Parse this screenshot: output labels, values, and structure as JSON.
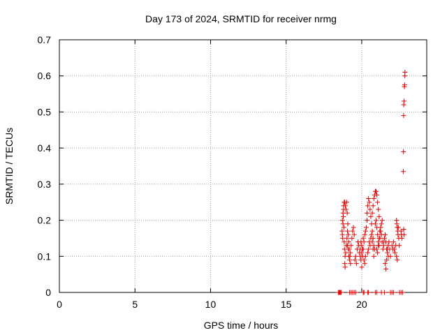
{
  "chart_data": {
    "type": "scatter",
    "title": "Day 173 of 2024, SRMTID for receiver nrmg",
    "xlabel": "GPS time / hours",
    "ylabel": "SRMTID / TECUs",
    "xlim": [
      0,
      24.3
    ],
    "ylim": [
      0,
      0.7
    ],
    "x_ticks": [
      0,
      5,
      10,
      15,
      20
    ],
    "x_tick_labels": [
      "0",
      "5",
      "10",
      "15",
      "20"
    ],
    "y_ticks": [
      0,
      0.1,
      0.2,
      0.3,
      0.4,
      0.5,
      0.6,
      0.7
    ],
    "y_tick_labels": [
      "0",
      "0.1",
      "0.2",
      "0.3",
      "0.4",
      "0.5",
      "0.6",
      "0.7"
    ],
    "grid": true,
    "marker": "+",
    "colors": {
      "series": "#e00000",
      "grid": "#a0a0a0",
      "axis": "#000000"
    },
    "series": [
      {
        "points": [
          [
            18.45,
            0
          ],
          [
            18.5,
            0
          ],
          [
            18.55,
            0
          ],
          [
            18.6,
            0
          ],
          [
            18.65,
            0
          ],
          [
            18.7,
            0.17
          ],
          [
            18.72,
            0.16
          ],
          [
            18.74,
            0.15
          ],
          [
            18.76,
            0.19
          ],
          [
            18.78,
            0.21
          ],
          [
            18.8,
            0.23
          ],
          [
            18.82,
            0.18
          ],
          [
            18.84,
            0.14
          ],
          [
            18.86,
            0.12
          ],
          [
            18.88,
            0.08
          ],
          [
            18.9,
            0.07
          ],
          [
            18.72,
            0.2
          ],
          [
            18.76,
            0.22
          ],
          [
            18.8,
            0.24
          ],
          [
            18.84,
            0.25
          ],
          [
            18.88,
            0.25
          ],
          [
            18.92,
            0.24
          ],
          [
            18.96,
            0.23
          ],
          [
            19.0,
            0.25
          ],
          [
            19.04,
            0.22
          ],
          [
            19.08,
            0.19
          ],
          [
            18.9,
            0.1
          ],
          [
            18.94,
            0.11
          ],
          [
            18.98,
            0.13
          ],
          [
            19.02,
            0.15
          ],
          [
            19.06,
            0.17
          ],
          [
            19.1,
            0.16
          ],
          [
            19.14,
            0.14
          ],
          [
            19.18,
            0.12
          ],
          [
            19.22,
            0.1
          ],
          [
            19.26,
            0.08
          ],
          [
            19.05,
            0.13
          ],
          [
            19.1,
            0.12
          ],
          [
            19.15,
            0.1
          ],
          [
            19.2,
            0.09
          ],
          [
            19.25,
            0.11
          ],
          [
            19.3,
            0.13
          ],
          [
            19.35,
            0.15
          ],
          [
            19.4,
            0.17
          ],
          [
            19.45,
            0.18
          ],
          [
            19.5,
            0.16
          ],
          [
            19.2,
            0
          ],
          [
            19.3,
            0
          ],
          [
            19.4,
            0
          ],
          [
            19.5,
            0
          ],
          [
            19.6,
            0
          ],
          [
            19.55,
            0.09
          ],
          [
            19.6,
            0.1
          ],
          [
            19.65,
            0.08
          ],
          [
            19.7,
            0.12
          ],
          [
            19.75,
            0.14
          ],
          [
            19.8,
            0.13
          ],
          [
            19.85,
            0.11
          ],
          [
            19.9,
            0.1
          ],
          [
            19.95,
            0.09
          ],
          [
            20.0,
            0.07
          ],
          [
            19.9,
            0.12
          ],
          [
            19.95,
            0.14
          ],
          [
            20.0,
            0.13
          ],
          [
            20.05,
            0.12
          ],
          [
            20.1,
            0.15
          ],
          [
            20.15,
            0.14
          ],
          [
            20.2,
            0.16
          ],
          [
            20.25,
            0.17
          ],
          [
            20.3,
            0.18
          ],
          [
            20.35,
            0.2
          ],
          [
            20.0,
            0.11
          ],
          [
            20.05,
            0.1
          ],
          [
            20.1,
            0.12
          ],
          [
            20.15,
            0.09
          ],
          [
            20.2,
            0.08
          ],
          [
            20.25,
            0.1
          ],
          [
            20.1,
            0
          ],
          [
            20.15,
            0
          ],
          [
            20.4,
            0
          ],
          [
            20.45,
            0
          ],
          [
            20.35,
            0.22
          ],
          [
            20.4,
            0.24
          ],
          [
            20.45,
            0.26
          ],
          [
            20.5,
            0.25
          ],
          [
            20.55,
            0.23
          ],
          [
            20.6,
            0.21
          ],
          [
            20.65,
            0.19
          ],
          [
            20.7,
            0.17
          ],
          [
            20.75,
            0.15
          ],
          [
            20.8,
            0.13
          ],
          [
            20.4,
            0.11
          ],
          [
            20.45,
            0.12
          ],
          [
            20.5,
            0.14
          ],
          [
            20.55,
            0.13
          ],
          [
            20.6,
            0.15
          ],
          [
            20.65,
            0.16
          ],
          [
            20.7,
            0.14
          ],
          [
            20.75,
            0.12
          ],
          [
            20.8,
            0.1
          ],
          [
            20.85,
            0.12
          ],
          [
            20.7,
            0.22
          ],
          [
            20.75,
            0.24
          ],
          [
            20.8,
            0.26
          ],
          [
            20.85,
            0.27
          ],
          [
            20.9,
            0.28
          ],
          [
            20.95,
            0.28
          ],
          [
            21.0,
            0.27
          ],
          [
            21.05,
            0.25
          ],
          [
            21.1,
            0.23
          ],
          [
            21.15,
            0.21
          ],
          [
            20.9,
            0.19
          ],
          [
            20.95,
            0.2
          ],
          [
            21.0,
            0.18
          ],
          [
            21.05,
            0.16
          ],
          [
            21.1,
            0.14
          ],
          [
            21.15,
            0.13
          ],
          [
            21.2,
            0.15
          ],
          [
            21.25,
            0.17
          ],
          [
            21.3,
            0.19
          ],
          [
            21.35,
            0.2
          ],
          [
            21.0,
            0.12
          ],
          [
            21.05,
            0.11
          ],
          [
            21.1,
            0.13
          ],
          [
            21.15,
            0.15
          ],
          [
            21.2,
            0.17
          ],
          [
            21.25,
            0.18
          ],
          [
            21.3,
            0.16
          ],
          [
            21.35,
            0.14
          ],
          [
            21.4,
            0.12
          ],
          [
            21.45,
            0.13
          ],
          [
            20.9,
            0
          ],
          [
            21.0,
            0
          ],
          [
            21.3,
            0
          ],
          [
            21.5,
            0
          ],
          [
            21.45,
            0.14
          ],
          [
            21.5,
            0.15
          ],
          [
            21.55,
            0.16
          ],
          [
            21.6,
            0.14
          ],
          [
            21.65,
            0.12
          ],
          [
            21.7,
            0.11
          ],
          [
            21.75,
            0.13
          ],
          [
            21.8,
            0.14
          ],
          [
            21.85,
            0.12
          ],
          [
            21.9,
            0.1
          ],
          [
            21.55,
            0.08
          ],
          [
            21.6,
            0.065
          ],
          [
            21.65,
            0.09
          ],
          [
            21.7,
            0.12
          ],
          [
            21.75,
            0.1
          ],
          [
            22.0,
            0.13
          ],
          [
            22.05,
            0.12
          ],
          [
            22.1,
            0.14
          ],
          [
            22.15,
            0.12
          ],
          [
            22.2,
            0.11
          ],
          [
            22.25,
            0.13
          ],
          [
            22.3,
            0.1
          ],
          [
            22.35,
            0.09
          ],
          [
            22.3,
            0.2
          ],
          [
            22.32,
            0.19
          ],
          [
            22.35,
            0.18
          ],
          [
            22.38,
            0.17
          ],
          [
            22.4,
            0.16
          ],
          [
            22.42,
            0.18
          ],
          [
            22.45,
            0.15
          ],
          [
            22.48,
            0.13
          ],
          [
            21.9,
            0
          ],
          [
            22.0,
            0
          ],
          [
            22.1,
            0
          ],
          [
            22.5,
            0
          ],
          [
            22.6,
            0
          ],
          [
            22.7,
            0
          ],
          [
            22.6,
            0.17
          ],
          [
            22.62,
            0.16
          ],
          [
            22.65,
            0.15
          ],
          [
            22.75,
            0.335
          ],
          [
            22.76,
            0.39
          ],
          [
            22.77,
            0.49
          ],
          [
            22.78,
            0.52
          ],
          [
            22.8,
            0.53
          ],
          [
            22.82,
            0.57
          ],
          [
            22.84,
            0.575
          ],
          [
            22.85,
            0.6
          ],
          [
            22.86,
            0.61
          ],
          [
            22.78,
            0.175
          ],
          [
            22.8,
            0.16
          ]
        ]
      }
    ]
  }
}
